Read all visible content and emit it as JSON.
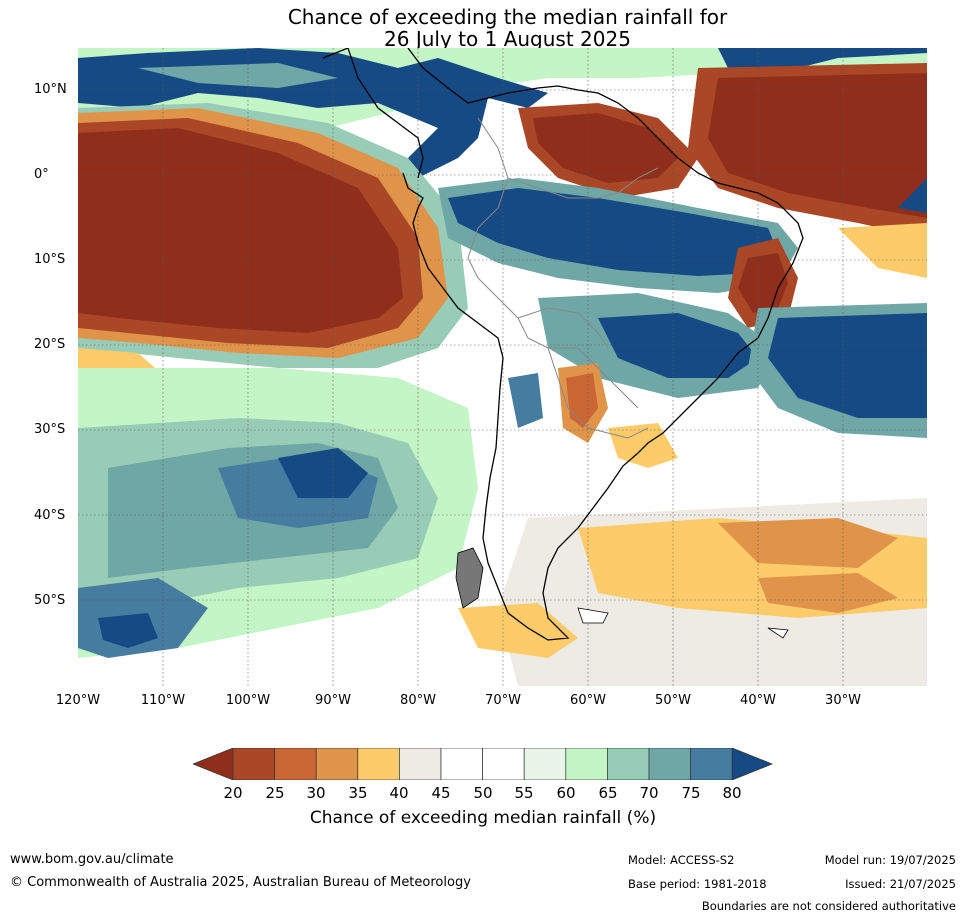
{
  "title_line1": "Chance of exceeding the median rainfall for",
  "title_line2": "26 July to 1 August 2025",
  "lat_labels": [
    "10°N",
    "0°",
    "10°S",
    "20°S",
    "30°S",
    "40°S",
    "50°S"
  ],
  "lon_labels": [
    "120°W",
    "110°W",
    "100°W",
    "90°W",
    "80°W",
    "70°W",
    "60°W",
    "50°W",
    "40°W",
    "30°W"
  ],
  "colorbar": {
    "ticks": [
      "20",
      "25",
      "30",
      "35",
      "40",
      "45",
      "50",
      "55",
      "60",
      "65",
      "70",
      "75",
      "80"
    ],
    "colors": [
      "#8f2e1b",
      "#aa4727",
      "#c96633",
      "#e0944a",
      "#fdcb6a",
      "#eeebe5",
      "#ffffff",
      "#ffffff",
      "#e8f5e8",
      "#c4f5c6",
      "#98ccb6",
      "#6ea7a6",
      "#467c9f",
      "#154a85"
    ],
    "title": "Chance of exceeding median rainfall (%)"
  },
  "footer": {
    "url": "www.bom.gov.au/climate",
    "copyright": "© Commonwealth of Australia 2025, Australian Bureau of Meteorology",
    "model": "Model: ACCESS-S2",
    "model_run": "Model run: 19/07/2025",
    "base_period": "Base period: 1981-2018",
    "issued": "Issued: 21/07/2025",
    "disclaimer": "Boundaries are not considered authoritative"
  }
}
